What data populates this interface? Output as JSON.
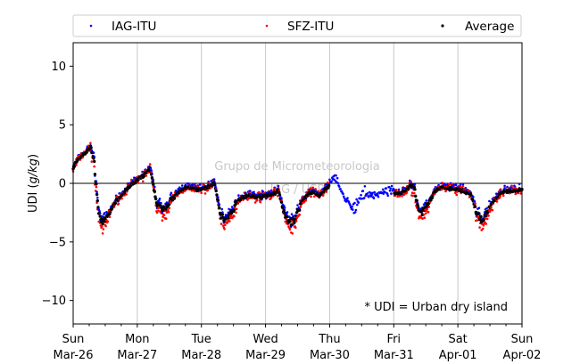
{
  "chart_data": {
    "type": "scatter",
    "ylabel": "UDI (g/kg)",
    "ylim": [
      -12,
      12
    ],
    "yticks": [
      -10,
      -5,
      0,
      5,
      10
    ],
    "xlim": [
      "2023-03-26T00:00",
      "2023-04-02T00:00"
    ],
    "xticks": [
      {
        "day": "Sun",
        "date": "Mar-26"
      },
      {
        "day": "Mon",
        "date": "Mar-27"
      },
      {
        "day": "Tue",
        "date": "Mar-28"
      },
      {
        "day": "Wed",
        "date": "Mar-29"
      },
      {
        "day": "Thu",
        "date": "Mar-30"
      },
      {
        "day": "Fri",
        "date": "Mar-31"
      },
      {
        "day": "Sat",
        "date": "Apr-01"
      },
      {
        "day": "Sun",
        "date": "Apr-02"
      }
    ],
    "grid": "vertical at each day",
    "reference_line_y": 0,
    "legend_position": "top, above plot, 3 columns",
    "legend": [
      "IAG-ITU",
      "SFZ-ITU",
      "Average"
    ],
    "colors": {
      "IAG-ITU": "#0000ff",
      "SFZ-ITU": "#ff0000",
      "Average": "#000000"
    },
    "annotation": "* UDI = Urban dry island",
    "watermark_line1": "Grupo de Micrometeorologia",
    "watermark_line2": "IAG / USP",
    "series_profile": {
      "x_day": [
        0.0,
        0.1,
        0.2,
        0.28,
        0.33,
        0.4,
        0.47,
        0.55,
        0.65,
        0.75,
        0.85,
        0.95,
        1.1,
        1.2,
        1.3,
        1.38,
        1.45,
        1.55,
        1.65,
        1.75,
        1.85,
        1.95,
        2.1,
        2.2,
        2.3,
        2.38,
        2.45,
        2.55,
        2.65,
        2.75,
        2.85,
        2.95,
        3.1,
        3.2,
        3.3,
        3.38,
        3.45,
        3.55,
        3.65,
        3.75,
        3.85,
        3.95,
        4.1,
        4.2,
        4.3,
        4.38,
        4.45,
        4.55,
        4.65,
        4.75,
        4.85,
        4.95,
        5.1,
        5.2,
        5.3,
        5.38,
        5.45,
        5.55,
        5.65,
        5.75,
        5.85,
        5.95,
        6.1,
        6.2,
        6.3,
        6.38,
        6.45,
        6.55,
        6.65,
        6.75,
        6.85,
        6.95,
        7.0
      ],
      "y_gkg": [
        1.5,
        2.3,
        2.8,
        3.3,
        1.8,
        -2.5,
        -3.2,
        -2.6,
        -1.5,
        -0.9,
        -0.3,
        0.2,
        0.8,
        1.4,
        -1.5,
        -2.0,
        -1.8,
        -1.2,
        -0.6,
        -0.2,
        -0.3,
        -0.4,
        -0.2,
        0.2,
        -2.5,
        -3.0,
        -2.6,
        -1.4,
        -1.0,
        -0.9,
        -1.0,
        -1.0,
        -0.8,
        -0.5,
        -2.6,
        -3.2,
        -3.0,
        -1.6,
        -0.8,
        -0.6,
        -0.9,
        -0.3,
        0.6,
        -1.0,
        -1.8,
        -2.4,
        -1.2,
        -0.9,
        -1.0,
        -0.9,
        -0.8,
        -0.6,
        -0.7,
        -0.4,
        0.1,
        -1.8,
        -2.3,
        -1.5,
        -0.5,
        -0.2,
        -0.3,
        -0.3,
        -0.5,
        -0.8,
        -2.4,
        -3.0,
        -2.5,
        -1.5,
        -0.8,
        -0.5,
        -0.5,
        -0.4,
        -0.3
      ]
    }
  }
}
